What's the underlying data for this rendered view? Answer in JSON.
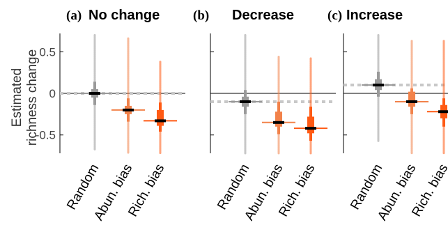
{
  "chart_data": {
    "type": "box",
    "ylabel": [
      "Estimated",
      "richness change"
    ],
    "ylim": [
      -0.72,
      0.72
    ],
    "yticks": [
      0.5,
      0,
      -0.5
    ],
    "ytick_labels": [
      "0.5",
      "0",
      "-0.5"
    ],
    "categories": [
      "Random",
      "Abun. bias",
      "Rich. bias"
    ],
    "colors": {
      "Random": "#9a9a9a",
      "Abun. bias": "#f2824a",
      "Rich. bias": "#ff5a14"
    },
    "panels": [
      {
        "letter": "(a)",
        "title": "No change",
        "reference": 0,
        "boxes": [
          {
            "category": "Random",
            "median": 0.0,
            "q1": -0.05,
            "q3": 0.05,
            "lower": -0.14,
            "upper": 0.14,
            "min": -0.68,
            "max": 0.7
          },
          {
            "category": "Abun. bias",
            "median": -0.2,
            "q1": -0.25,
            "q3": -0.15,
            "lower": -0.34,
            "upper": -0.06,
            "min": -0.72,
            "max": 0.66
          },
          {
            "category": "Rich. bias",
            "median": -0.33,
            "q1": -0.39,
            "q3": -0.2,
            "lower": -0.46,
            "upper": -0.11,
            "min": -0.72,
            "max": 0.38
          }
        ]
      },
      {
        "letter": "(b)",
        "title": "Decrease",
        "reference": -0.1,
        "boxes": [
          {
            "category": "Random",
            "median": -0.1,
            "q1": -0.16,
            "q3": -0.04,
            "lower": -0.25,
            "upper": 0.04,
            "min": -0.72,
            "max": 0.7
          },
          {
            "category": "Abun. bias",
            "median": -0.35,
            "q1": -0.4,
            "q3": -0.22,
            "lower": -0.49,
            "upper": -0.1,
            "min": -0.72,
            "max": 0.44
          },
          {
            "category": "Rich. bias",
            "median": -0.42,
            "q1": -0.48,
            "q3": -0.28,
            "lower": -0.57,
            "upper": -0.16,
            "min": -0.72,
            "max": 0.42
          }
        ]
      },
      {
        "letter": "(c)",
        "title": "Increase",
        "reference": 0.1,
        "boxes": [
          {
            "category": "Random",
            "median": 0.1,
            "q1": 0.04,
            "q3": 0.17,
            "lower": -0.04,
            "upper": 0.26,
            "min": -0.58,
            "max": 0.7
          },
          {
            "category": "Abun. bias",
            "median": -0.1,
            "q1": -0.16,
            "q3": 0.02,
            "lower": -0.25,
            "upper": 0.06,
            "min": -0.72,
            "max": 0.63
          },
          {
            "category": "Rich. bias",
            "median": -0.22,
            "q1": -0.3,
            "q3": -0.14,
            "lower": -0.4,
            "upper": -0.06,
            "min": -0.72,
            "max": 0.63
          }
        ]
      }
    ],
    "grid": false,
    "legend": "none"
  }
}
